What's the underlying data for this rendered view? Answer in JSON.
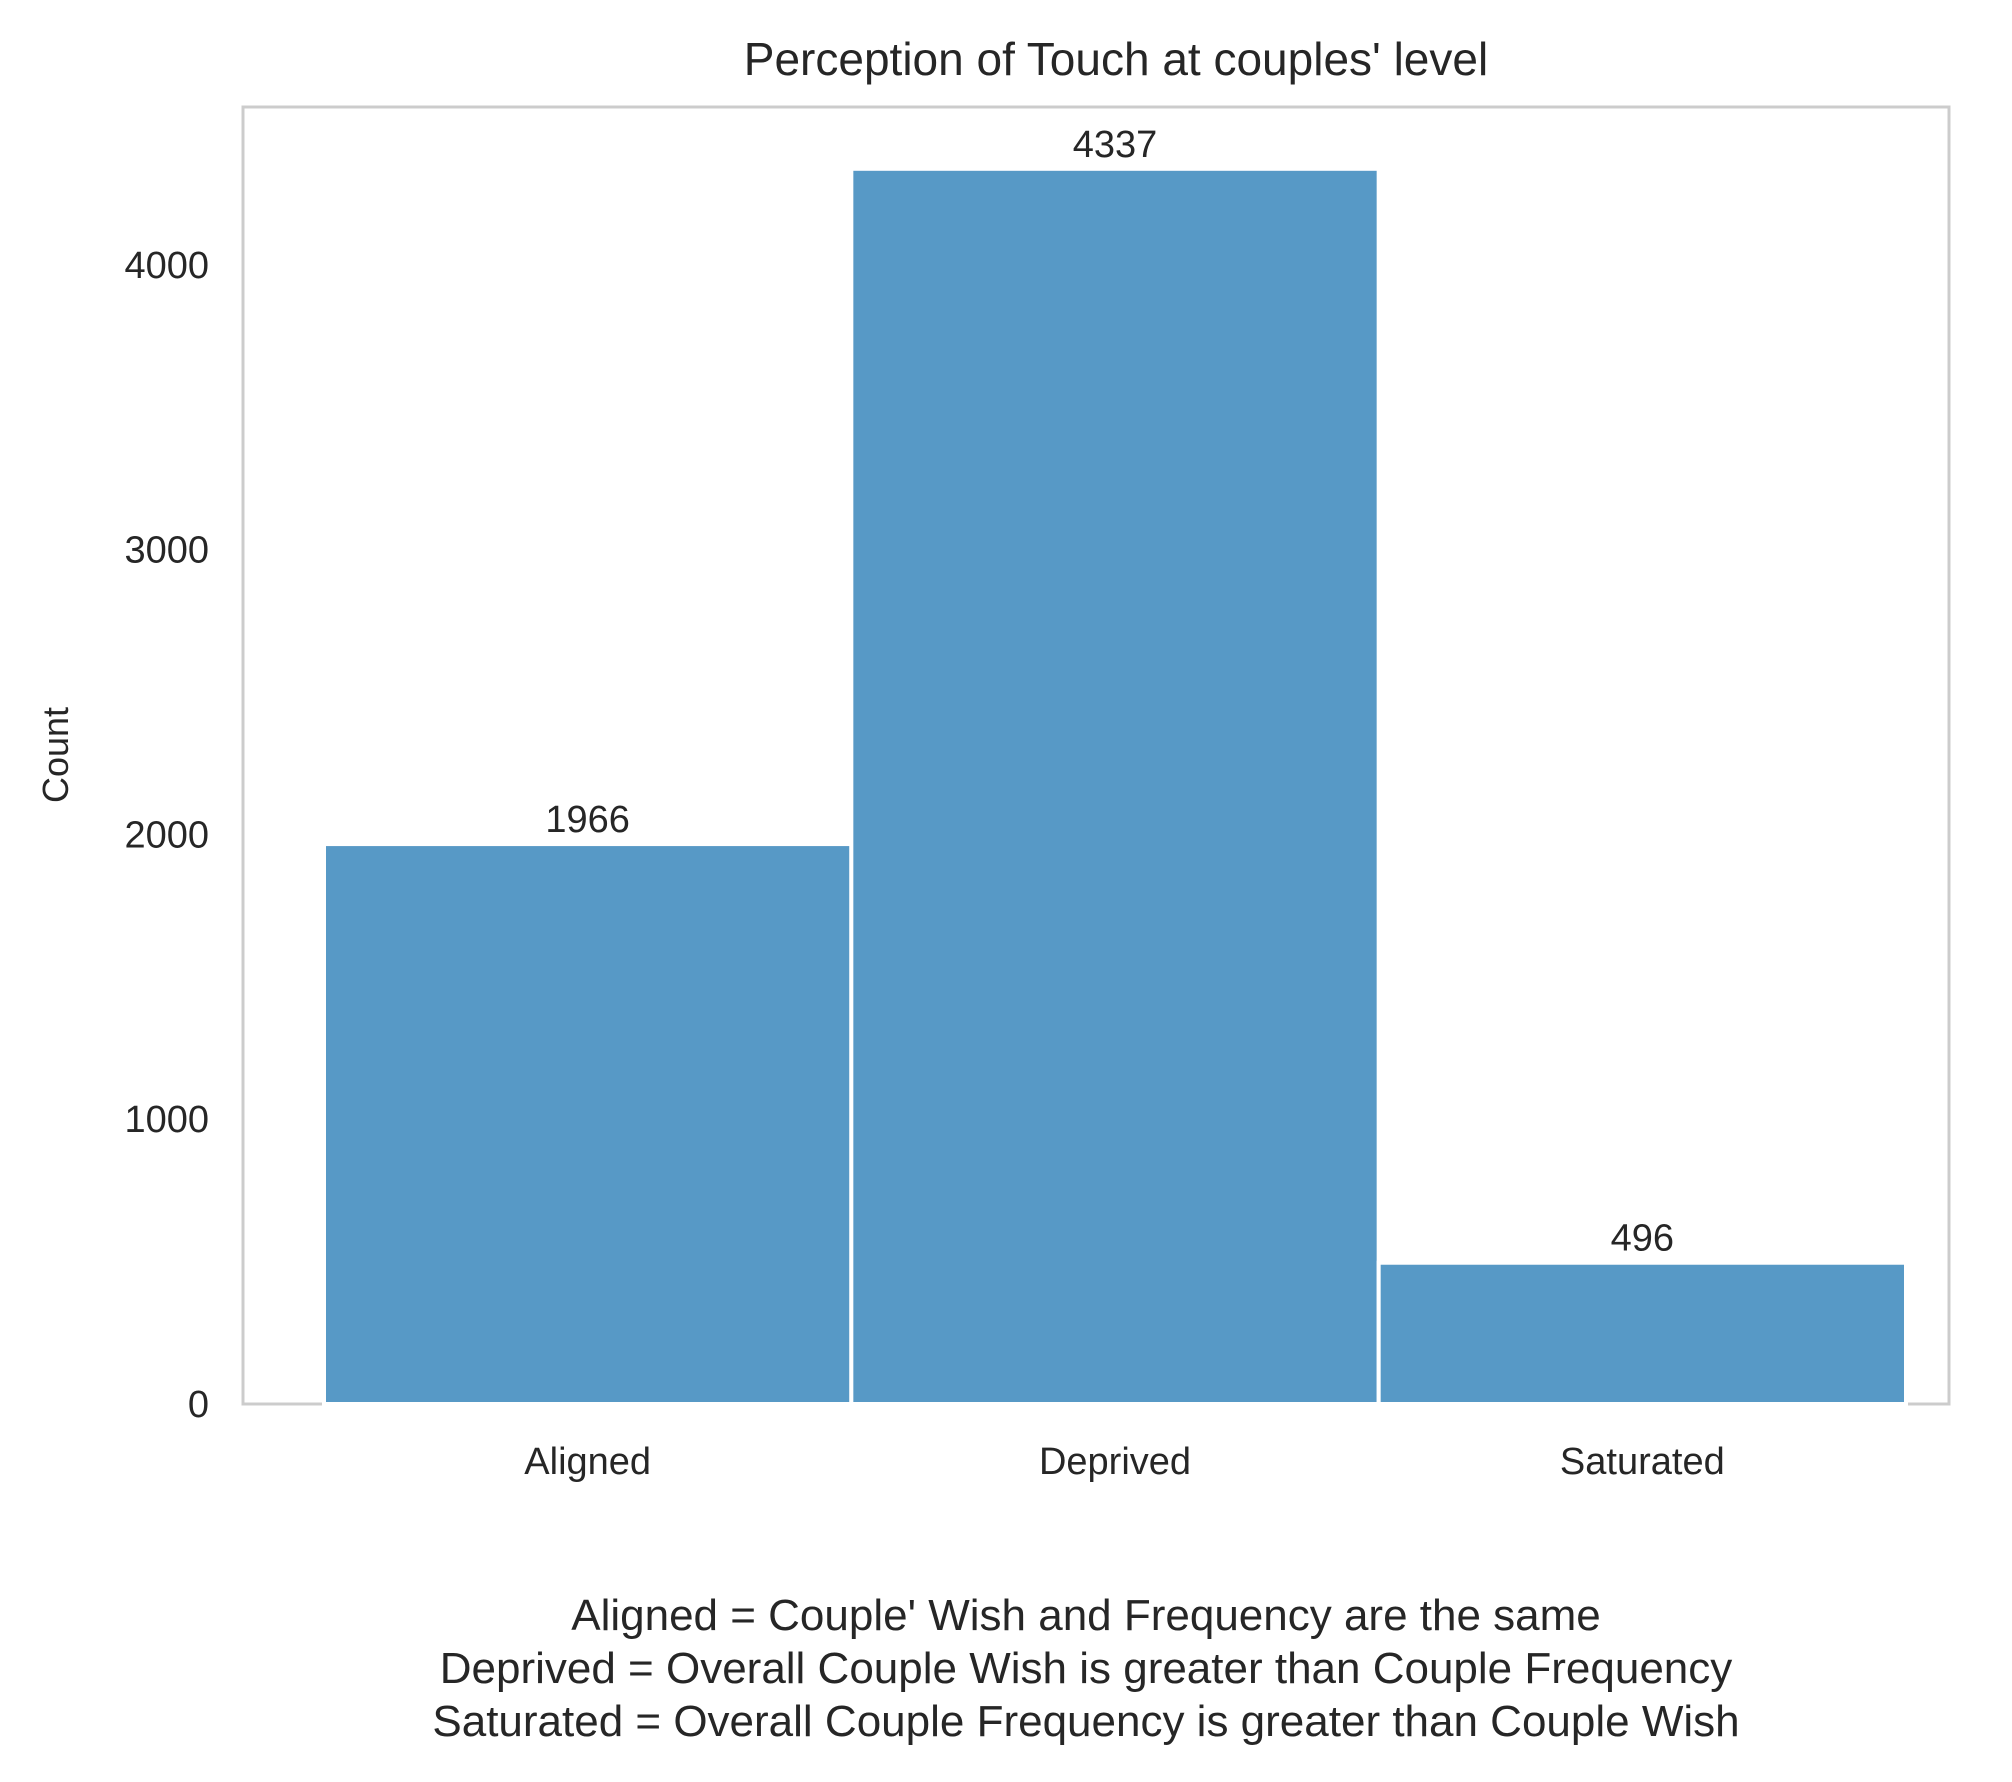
{
  "chart_data": {
    "type": "bar",
    "title": "Perception of Touch at couples' level",
    "xlabel": "",
    "ylabel": "Count",
    "categories": [
      "Aligned",
      "Deprived",
      "Saturated"
    ],
    "values": [
      1966,
      4337,
      496
    ],
    "data_labels": [
      "1966",
      "4337",
      "496"
    ],
    "yticks": [
      0,
      1000,
      2000,
      3000,
      4000
    ],
    "ytick_labels": [
      "0",
      "1000",
      "2000",
      "3000",
      "4000"
    ],
    "ylim": [
      0,
      4554
    ],
    "grid": false,
    "bar_color": "#5799c6",
    "caption_lines": [
      "Aligned = Couple' Wish and Frequency are the same",
      "Deprived = Overall Couple Wish is greater than Couple Frequency",
      "Saturated = Overall Couple Frequency is greater than Couple Wish"
    ]
  }
}
